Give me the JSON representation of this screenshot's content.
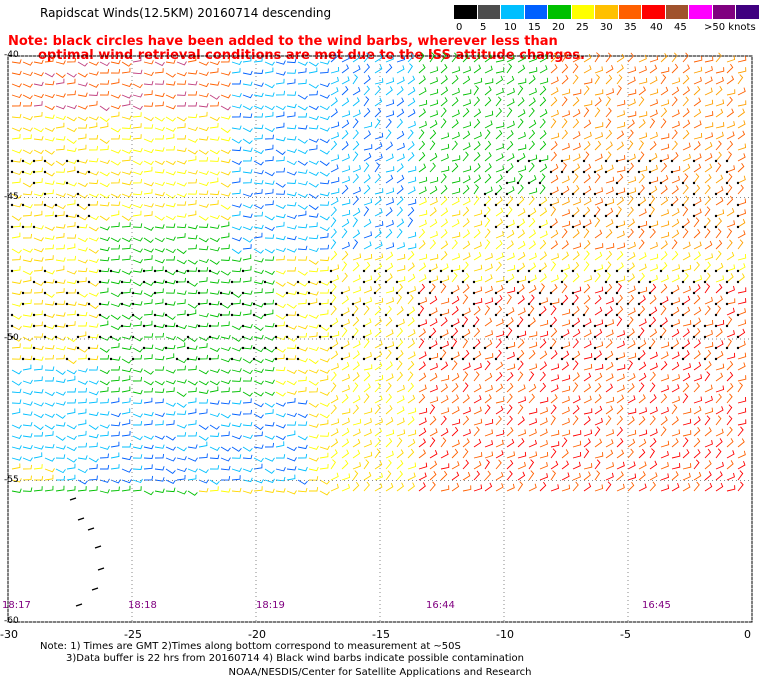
{
  "header": {
    "title": "Rapidscat Winds(12.5KM) 20160714 descending",
    "note_line1": "Note: black circles have been added to the wind barbs, wherever less than",
    "note_line2": "optimal wind retrieval conditions are met due to the ISS attitude changes."
  },
  "legend": {
    "labels": [
      "0",
      "5",
      "10",
      "15",
      "20",
      "25",
      "30",
      "35",
      "40",
      "45",
      ">50 knots"
    ],
    "colors": [
      "#000000",
      "#4d4d4d",
      "#00bfff",
      "#0060ff",
      "#00c000",
      "#ffff00",
      "#ffc000",
      "#ff6000",
      "#ff0000",
      "#a0522d",
      "#ff00ff",
      "#800080",
      "#400080"
    ]
  },
  "map": {
    "lon_ticks": [
      "-30",
      "-25",
      "-20",
      "-15",
      "-10",
      "-5",
      "0"
    ],
    "lat_ticks": [
      "-40",
      "-45",
      "-50",
      "-55",
      "-60"
    ],
    "times": [
      "18:17",
      "18:18",
      "18:19",
      "16:44",
      "16:45"
    ]
  },
  "footer": {
    "line1": "Note: 1) Times are GMT 2)Times along bottom correspond to measurement at ~50S",
    "line2": "3)Data buffer is 22 hrs from 20160714 4) Black wind barbs indicate possible contamination",
    "line3": "NOAA/NESDIS/Center for Satellite Applications and Research"
  }
}
